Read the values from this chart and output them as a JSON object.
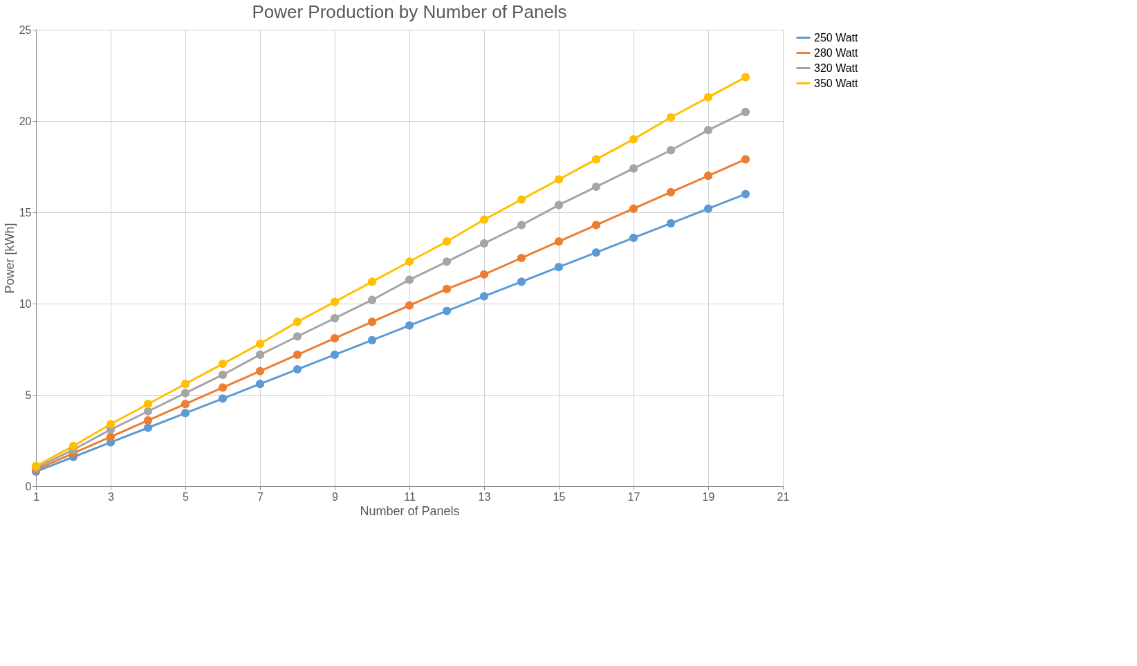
{
  "chart_data": {
    "type": "line",
    "title": "Power Production by Number of Panels",
    "xlabel": "Number of Panels",
    "ylabel": "Power [kWh]",
    "x": [
      1,
      2,
      3,
      4,
      5,
      6,
      7,
      8,
      9,
      10,
      11,
      12,
      13,
      14,
      15,
      16,
      17,
      18,
      19,
      20
    ],
    "series": [
      {
        "name": "250 Watt",
        "color": "#5b9bd5",
        "values": [
          0.8,
          1.6,
          2.4,
          3.2,
          4.0,
          4.8,
          5.6,
          6.4,
          7.2,
          8.0,
          8.8,
          9.6,
          10.4,
          11.2,
          12.0,
          12.8,
          13.6,
          14.4,
          15.2,
          16.0
        ]
      },
      {
        "name": "280 Watt",
        "color": "#ed7d31",
        "values": [
          0.9,
          1.8,
          2.7,
          3.6,
          4.5,
          5.4,
          6.3,
          7.2,
          8.1,
          9.0,
          9.9,
          10.8,
          11.6,
          12.5,
          13.4,
          14.3,
          15.2,
          16.1,
          17.0,
          17.9
        ]
      },
      {
        "name": "320 Watt",
        "color": "#a5a5a5",
        "values": [
          1.0,
          2.0,
          3.1,
          4.1,
          5.1,
          6.1,
          7.2,
          8.2,
          9.2,
          10.2,
          11.3,
          12.3,
          13.3,
          14.3,
          15.4,
          16.4,
          17.4,
          18.4,
          19.5,
          20.5
        ]
      },
      {
        "name": "350 Watt",
        "color": "#ffc000",
        "values": [
          1.1,
          2.2,
          3.4,
          4.5,
          5.6,
          6.7,
          7.8,
          9.0,
          10.1,
          11.2,
          12.3,
          13.4,
          14.6,
          15.7,
          16.8,
          17.9,
          19.0,
          20.2,
          21.3,
          22.4
        ]
      }
    ],
    "xlim": [
      1,
      21
    ],
    "xticks": [
      1,
      3,
      5,
      7,
      9,
      11,
      13,
      15,
      17,
      19,
      21
    ],
    "ylim": [
      0,
      25
    ],
    "yticks": [
      0,
      5,
      10,
      15,
      20,
      25
    ],
    "grid": true,
    "legend": "right",
    "marker": "circle",
    "line_style": "solid"
  }
}
